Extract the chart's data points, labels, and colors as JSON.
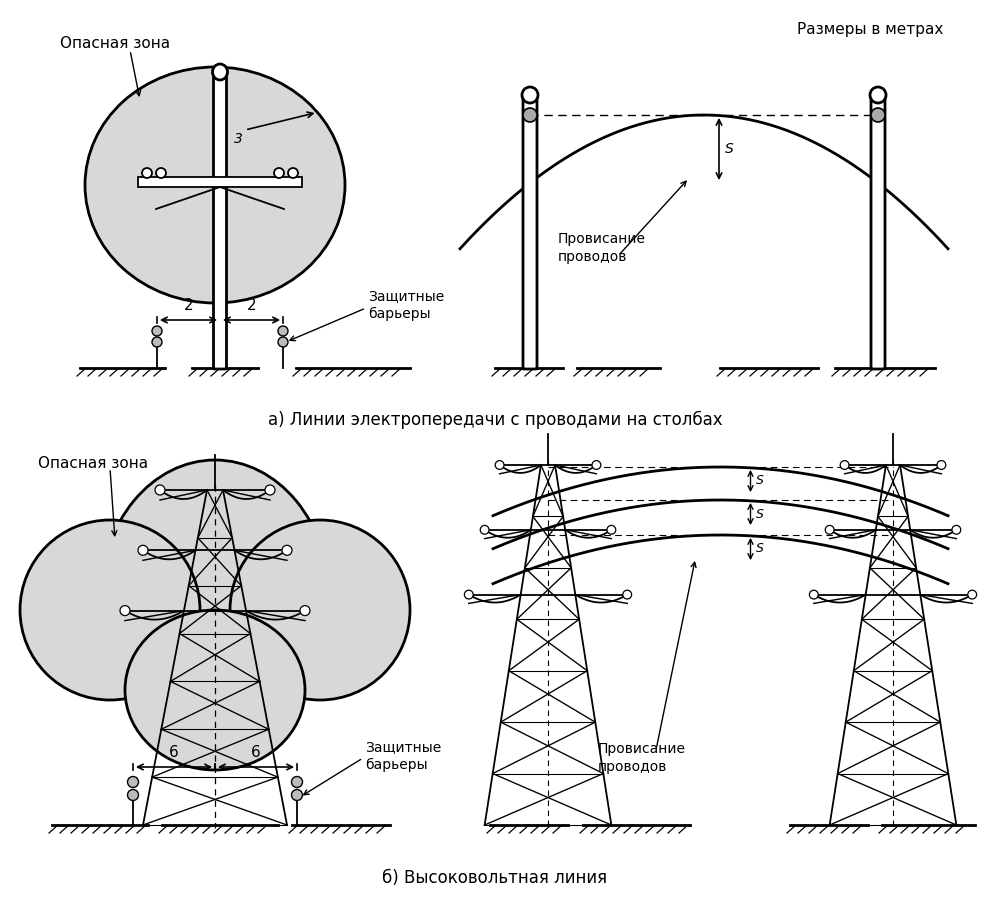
{
  "title_top_right": "Размеры в метрах",
  "caption_a": "а) Линии электропередачи с проводами на столбах",
  "caption_b": "б) Высоковольтная линия",
  "label_danger_zone": "Опасная зона",
  "bg_color": "#ffffff",
  "gray_zone": "#d8d8d8",
  "line_color": "#000000"
}
